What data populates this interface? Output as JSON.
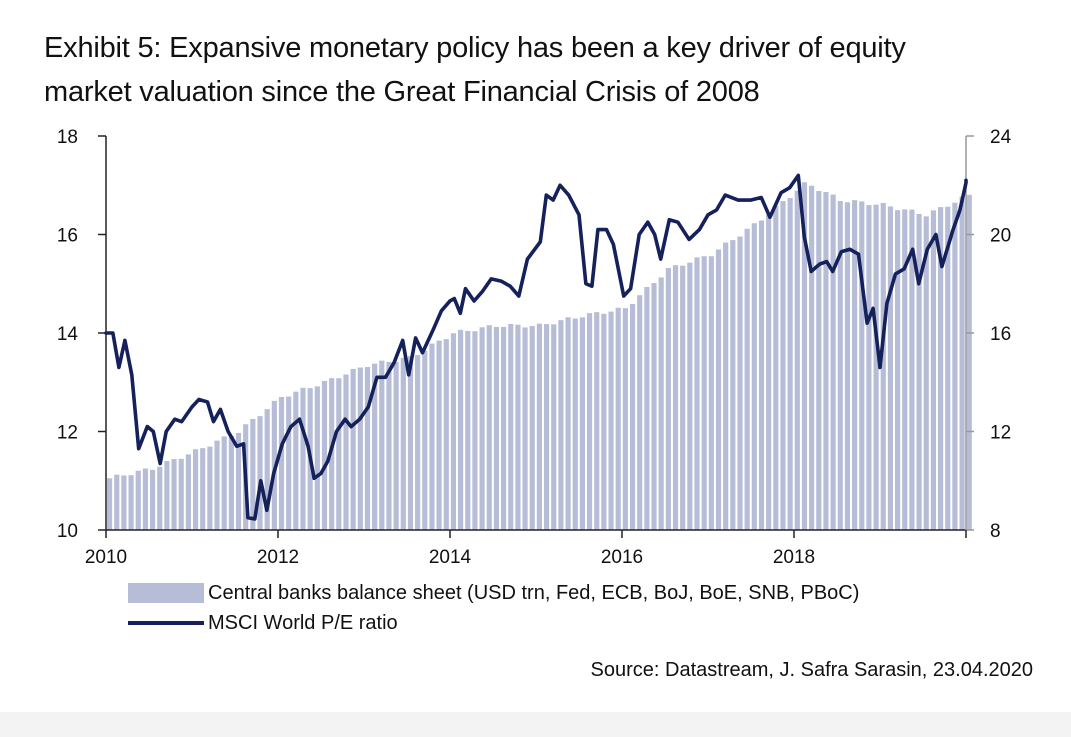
{
  "title": {
    "line1": "Exhibit 5: Expansive monetary policy has been a key driver of equity",
    "line2": "market valuation since the Great Financial Crisis of 2008"
  },
  "legend": {
    "bars_label": "Central banks balance sheet (USD trn, Fed, ECB, BoJ, BoE, SNB, PBoC)",
    "line_label": "MSCI World P/E ratio"
  },
  "source": "Source: Datastream, J. Safra Sarasin, 23.04.2020",
  "colors": {
    "bars": "#b7bdd6",
    "line": "#14215a",
    "axis": "#222222",
    "right_axis": "#999999"
  },
  "chart_data": {
    "type": "bar+line",
    "title": "Exhibit 5: Expansive monetary policy has been a key driver of equity market valuation since the Great Financial Crisis of 2008",
    "x_range": [
      2010.0,
      2020.0
    ],
    "x_ticks": [
      "2010",
      "2012",
      "2014",
      "2016",
      "2018"
    ],
    "x_tick_values": [
      2010,
      2012,
      2014,
      2016,
      2018,
      2020
    ],
    "y_left": {
      "range": [
        10,
        18
      ],
      "ticks": [
        "10",
        "12",
        "14",
        "16",
        "18"
      ],
      "tick_values": [
        10,
        12,
        14,
        16,
        18
      ]
    },
    "y_right": {
      "range": [
        8,
        24
      ],
      "ticks": [
        "8",
        "12",
        "16",
        "20",
        "24"
      ],
      "tick_values": [
        8,
        12,
        16,
        20,
        24
      ]
    },
    "bar_series": {
      "name": "Central banks balance sheet (USD trn, Fed, ECB, BoJ, BoE, SNB, PBoC)",
      "axis": "left",
      "step_years": 0.0833,
      "start_year": 2010.0,
      "anchors": [
        [
          2010.0,
          11.05
        ],
        [
          2010.5,
          11.25
        ],
        [
          2011.0,
          11.6
        ],
        [
          2011.5,
          12.0
        ],
        [
          2012.0,
          12.7
        ],
        [
          2012.5,
          13.0
        ],
        [
          2013.0,
          13.35
        ],
        [
          2013.5,
          13.5
        ],
        [
          2014.0,
          14.0
        ],
        [
          2014.5,
          14.15
        ],
        [
          2015.0,
          14.15
        ],
        [
          2015.5,
          14.35
        ],
        [
          2016.0,
          14.5
        ],
        [
          2016.5,
          15.3
        ],
        [
          2017.0,
          15.6
        ],
        [
          2017.5,
          16.2
        ],
        [
          2018.0,
          16.9
        ],
        [
          2018.1,
          17.05
        ],
        [
          2018.5,
          16.7
        ],
        [
          2019.0,
          16.6
        ],
        [
          2019.5,
          16.4
        ],
        [
          2020.0,
          16.8
        ]
      ]
    },
    "line_series": {
      "name": "MSCI World P/E ratio",
      "axis": "right",
      "points": [
        [
          2010.0,
          16.0
        ],
        [
          2010.08,
          16.0
        ],
        [
          2010.15,
          14.6
        ],
        [
          2010.22,
          15.7
        ],
        [
          2010.3,
          14.3
        ],
        [
          2010.38,
          11.3
        ],
        [
          2010.48,
          12.2
        ],
        [
          2010.55,
          12.0
        ],
        [
          2010.63,
          10.7
        ],
        [
          2010.7,
          12.0
        ],
        [
          2010.8,
          12.5
        ],
        [
          2010.88,
          12.4
        ],
        [
          2011.0,
          13.0
        ],
        [
          2011.08,
          13.3
        ],
        [
          2011.18,
          13.2
        ],
        [
          2011.25,
          12.4
        ],
        [
          2011.33,
          12.9
        ],
        [
          2011.42,
          12.0
        ],
        [
          2011.52,
          11.4
        ],
        [
          2011.6,
          11.5
        ],
        [
          2011.65,
          8.5
        ],
        [
          2011.73,
          8.45
        ],
        [
          2011.8,
          10.0
        ],
        [
          2011.87,
          8.8
        ],
        [
          2011.95,
          10.3
        ],
        [
          2012.05,
          11.5
        ],
        [
          2012.15,
          12.2
        ],
        [
          2012.25,
          12.5
        ],
        [
          2012.35,
          11.4
        ],
        [
          2012.42,
          10.1
        ],
        [
          2012.5,
          10.3
        ],
        [
          2012.58,
          10.8
        ],
        [
          2012.68,
          12.0
        ],
        [
          2012.78,
          12.5
        ],
        [
          2012.85,
          12.2
        ],
        [
          2012.95,
          12.5
        ],
        [
          2013.05,
          13.0
        ],
        [
          2013.15,
          14.2
        ],
        [
          2013.25,
          14.2
        ],
        [
          2013.35,
          14.8
        ],
        [
          2013.45,
          15.7
        ],
        [
          2013.52,
          14.3
        ],
        [
          2013.6,
          15.8
        ],
        [
          2013.68,
          15.2
        ],
        [
          2013.8,
          16.1
        ],
        [
          2013.9,
          16.9
        ],
        [
          2014.0,
          17.3
        ],
        [
          2014.05,
          17.4
        ],
        [
          2014.12,
          16.8
        ],
        [
          2014.18,
          17.8
        ],
        [
          2014.28,
          17.3
        ],
        [
          2014.38,
          17.7
        ],
        [
          2014.48,
          18.2
        ],
        [
          2014.6,
          18.1
        ],
        [
          2014.7,
          17.9
        ],
        [
          2014.8,
          17.5
        ],
        [
          2014.9,
          19.0
        ],
        [
          2015.05,
          19.7
        ],
        [
          2015.12,
          21.6
        ],
        [
          2015.2,
          21.4
        ],
        [
          2015.28,
          22.0
        ],
        [
          2015.38,
          21.6
        ],
        [
          2015.5,
          20.8
        ],
        [
          2015.58,
          18.0
        ],
        [
          2015.65,
          17.9
        ],
        [
          2015.72,
          20.2
        ],
        [
          2015.82,
          20.2
        ],
        [
          2015.9,
          19.6
        ],
        [
          2016.02,
          17.5
        ],
        [
          2016.1,
          17.8
        ],
        [
          2016.2,
          20.0
        ],
        [
          2016.3,
          20.5
        ],
        [
          2016.38,
          20.0
        ],
        [
          2016.45,
          19.0
        ],
        [
          2016.55,
          20.6
        ],
        [
          2016.65,
          20.5
        ],
        [
          2016.78,
          19.8
        ],
        [
          2016.9,
          20.2
        ],
        [
          2017.0,
          20.8
        ],
        [
          2017.1,
          21.0
        ],
        [
          2017.2,
          21.6
        ],
        [
          2017.35,
          21.4
        ],
        [
          2017.5,
          21.4
        ],
        [
          2017.62,
          21.5
        ],
        [
          2017.72,
          20.7
        ],
        [
          2017.85,
          21.7
        ],
        [
          2017.95,
          21.9
        ],
        [
          2018.05,
          22.4
        ],
        [
          2018.12,
          19.9
        ],
        [
          2018.2,
          18.5
        ],
        [
          2018.3,
          18.8
        ],
        [
          2018.38,
          18.9
        ],
        [
          2018.45,
          18.5
        ],
        [
          2018.55,
          19.3
        ],
        [
          2018.65,
          19.4
        ],
        [
          2018.75,
          19.2
        ],
        [
          2018.85,
          16.4
        ],
        [
          2018.92,
          17.0
        ],
        [
          2019.0,
          14.6
        ],
        [
          2019.08,
          17.2
        ],
        [
          2019.18,
          18.4
        ],
        [
          2019.28,
          18.6
        ],
        [
          2019.38,
          19.4
        ],
        [
          2019.45,
          18.0
        ],
        [
          2019.55,
          19.4
        ],
        [
          2019.65,
          20.0
        ],
        [
          2019.72,
          18.7
        ],
        [
          2019.85,
          20.2
        ],
        [
          2019.93,
          21.0
        ],
        [
          2020.02,
          22.1
        ],
        [
          2020.1,
          22.2
        ]
      ]
    },
    "legend_position": "bottom-left"
  }
}
